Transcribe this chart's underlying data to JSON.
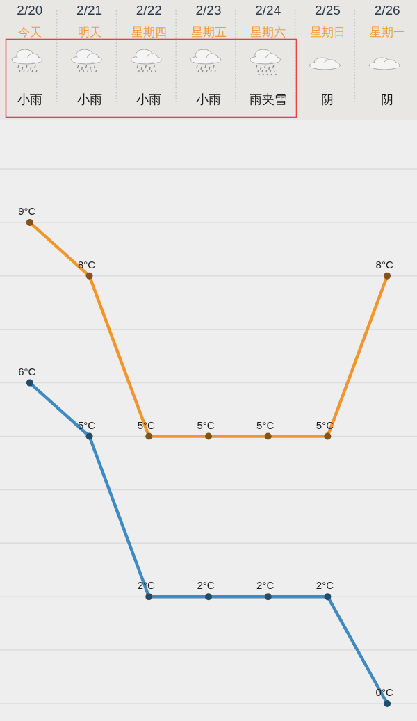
{
  "chart_data": {
    "type": "line",
    "categories": [
      "2/20",
      "2/21",
      "2/22",
      "2/23",
      "2/24",
      "2/25",
      "2/26"
    ],
    "series": [
      {
        "color": "#f0962d",
        "values": [
          9,
          8,
          5,
          5,
          5,
          5,
          8
        ],
        "value_labels": [
          "9°C",
          "8°C",
          "5°C",
          "5°C",
          "5°C",
          "5°C",
          "8°C"
        ]
      },
      {
        "color": "#3f8ac2",
        "values": [
          6,
          5,
          2,
          2,
          2,
          2,
          0
        ],
        "value_labels": [
          "6°C",
          "5°C",
          "2°C",
          "2°C",
          "2°C",
          "2°C",
          "0°C"
        ]
      }
    ],
    "annotations": [
      "今天",
      "明天",
      "星期四",
      "星期五",
      "星期六",
      "星期日",
      "星期一",
      "小雨",
      "小雨",
      "小雨",
      "小雨",
      "雨夹雪",
      "阴",
      "阴"
    ],
    "yticks": [
      {
        "value": 0,
        "label": null
      },
      {
        "value": 1,
        "label": null
      },
      {
        "value": 2,
        "label": null
      },
      {
        "value": 3,
        "label": null
      },
      {
        "value": 4,
        "label": null
      },
      {
        "value": 5,
        "label": null
      },
      {
        "value": 6,
        "label": null
      },
      {
        "value": 7,
        "label": null
      },
      {
        "value": 8,
        "label": null
      },
      {
        "value": 9,
        "label": null
      },
      {
        "value": 10,
        "label": null
      }
    ],
    "grid": "y",
    "tick_labels": "x",
    "marker": "circle",
    "line_style": "solid"
  }
}
